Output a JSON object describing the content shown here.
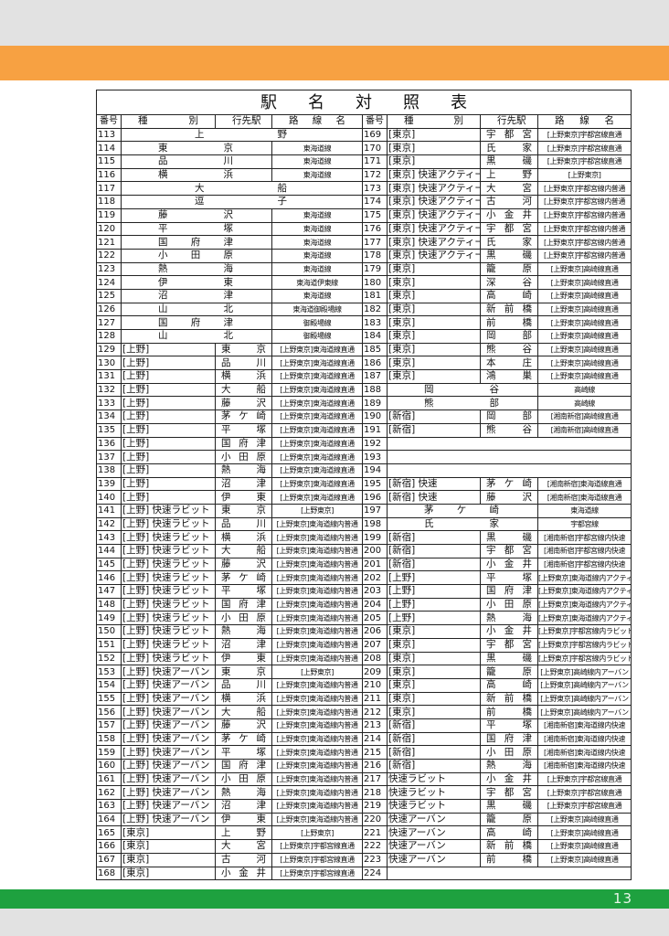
{
  "header": {
    "title": "駅名対照表",
    "page": "13"
  },
  "table": {
    "columns": [
      "番号",
      "種別",
      "行先駅",
      "路線名",
      "番号",
      "種別",
      "行先駅",
      "路線名"
    ],
    "left": [
      [
        "113",
        "上野"
      ],
      [
        "114",
        "東京",
        "東海道線"
      ],
      [
        "115",
        "品川",
        "東海道線"
      ],
      [
        "116",
        "横浜",
        "東海道線"
      ],
      [
        "117",
        "大船"
      ],
      [
        "118",
        "逗子"
      ],
      [
        "119",
        "藤沢",
        "東海道線"
      ],
      [
        "120",
        "平塚",
        "東海道線"
      ],
      [
        "121",
        "国府津",
        "東海道線"
      ],
      [
        "122",
        "小田原",
        "東海道線"
      ],
      [
        "123",
        "熱海",
        "東海道線"
      ],
      [
        "124",
        "伊東",
        "東海道伊東線"
      ],
      [
        "125",
        "沼津",
        "東海道線"
      ],
      [
        "126",
        "山北",
        "東海道御殿場線"
      ],
      [
        "127",
        "国府津",
        "御殿場線"
      ],
      [
        "128",
        "山北",
        "御殿場線"
      ],
      [
        "129",
        "[上野]",
        "東京",
        "[上野東京]東海道線直通"
      ],
      [
        "130",
        "[上野]",
        "品川",
        "[上野東京]東海道線直通"
      ],
      [
        "131",
        "[上野]",
        "横浜",
        "[上野東京]東海道線直通"
      ],
      [
        "132",
        "[上野]",
        "大船",
        "[上野東京]東海道線直通"
      ],
      [
        "133",
        "[上野]",
        "藤沢",
        "[上野東京]東海道線直通"
      ],
      [
        "134",
        "[上野]",
        "茅ケ崎",
        "[上野東京]東海道線直通"
      ],
      [
        "135",
        "[上野]",
        "平塚",
        "[上野東京]東海道線直通"
      ],
      [
        "136",
        "[上野]",
        "国府津",
        "[上野東京]東海道線直通"
      ],
      [
        "137",
        "[上野]",
        "小田原",
        "[上野東京]東海道線直通"
      ],
      [
        "138",
        "[上野]",
        "熱海",
        "[上野東京]東海道線直通"
      ],
      [
        "139",
        "[上野]",
        "沼津",
        "[上野東京]東海道線直通"
      ],
      [
        "140",
        "[上野]",
        "伊東",
        "[上野東京]東海道線直通"
      ],
      [
        "141",
        "[上野] 快速ラビット",
        "東京",
        "[上野東京]"
      ],
      [
        "142",
        "[上野] 快速ラビット",
        "品川",
        "[上野東京]東海道線内普通"
      ],
      [
        "143",
        "[上野] 快速ラビット",
        "横浜",
        "[上野東京]東海道線内普通"
      ],
      [
        "144",
        "[上野] 快速ラビット",
        "大船",
        "[上野東京]東海道線内普通"
      ],
      [
        "145",
        "[上野] 快速ラビット",
        "藤沢",
        "[上野東京]東海道線内普通"
      ],
      [
        "146",
        "[上野] 快速ラビット",
        "茅ケ崎",
        "[上野東京]東海道線内普通"
      ],
      [
        "147",
        "[上野] 快速ラビット",
        "平塚",
        "[上野東京]東海道線内普通"
      ],
      [
        "148",
        "[上野] 快速ラビット",
        "国府津",
        "[上野東京]東海道線内普通"
      ],
      [
        "149",
        "[上野] 快速ラビット",
        "小田原",
        "[上野東京]東海道線内普通"
      ],
      [
        "150",
        "[上野] 快速ラビット",
        "熱海",
        "[上野東京]東海道線内普通"
      ],
      [
        "151",
        "[上野] 快速ラビット",
        "沼津",
        "[上野東京]東海道線内普通"
      ],
      [
        "152",
        "[上野] 快速ラビット",
        "伊東",
        "[上野東京]東海道線内普通"
      ],
      [
        "153",
        "[上野] 快速アーバン",
        "東京",
        "[上野東京]"
      ],
      [
        "154",
        "[上野] 快速アーバン",
        "品川",
        "[上野東京]東海道線内普通"
      ],
      [
        "155",
        "[上野] 快速アーバン",
        "横浜",
        "[上野東京]東海道線内普通"
      ],
      [
        "156",
        "[上野] 快速アーバン",
        "大船",
        "[上野東京]東海道線内普通"
      ],
      [
        "157",
        "[上野] 快速アーバン",
        "藤沢",
        "[上野東京]東海道線内普通"
      ],
      [
        "158",
        "[上野] 快速アーバン",
        "茅ケ崎",
        "[上野東京]東海道線内普通"
      ],
      [
        "159",
        "[上野] 快速アーバン",
        "平塚",
        "[上野東京]東海道線内普通"
      ],
      [
        "160",
        "[上野] 快速アーバン",
        "国府津",
        "[上野東京]東海道線内普通"
      ],
      [
        "161",
        "[上野] 快速アーバン",
        "小田原",
        "[上野東京]東海道線内普通"
      ],
      [
        "162",
        "[上野] 快速アーバン",
        "熱海",
        "[上野東京]東海道線内普通"
      ],
      [
        "163",
        "[上野] 快速アーバン",
        "沼津",
        "[上野東京]東海道線内普通"
      ],
      [
        "164",
        "[上野] 快速アーバン",
        "伊東",
        "[上野東京]東海道線内普通"
      ],
      [
        "165",
        "[東京]",
        "上野",
        "[上野東京]"
      ],
      [
        "166",
        "[東京]",
        "大宮",
        "[上野東京]宇都宮線直通"
      ],
      [
        "167",
        "[東京]",
        "古河",
        "[上野東京]宇都宮線直通"
      ],
      [
        "168",
        "[東京]",
        "小金井",
        "[上野東京]宇都宮線直通"
      ]
    ],
    "right": [
      [
        "169",
        "[東京]",
        "宇都宮",
        "[上野東京]宇都宮線直通"
      ],
      [
        "170",
        "[東京]",
        "氏家",
        "[上野東京]宇都宮線直通"
      ],
      [
        "171",
        "[東京]",
        "黒磯",
        "[上野東京]宇都宮線直通"
      ],
      [
        "172",
        "[東京] 快速アクティー",
        "上野",
        "[上野東京]"
      ],
      [
        "173",
        "[東京] 快速アクティー",
        "大宮",
        "[上野東京]宇都宮線内普通"
      ],
      [
        "174",
        "[東京] 快速アクティー",
        "古河",
        "[上野東京]宇都宮線内普通"
      ],
      [
        "175",
        "[東京] 快速アクティー",
        "小金井",
        "[上野東京]宇都宮線内普通"
      ],
      [
        "176",
        "[東京] 快速アクティー",
        "宇都宮",
        "[上野東京]宇都宮線内普通"
      ],
      [
        "177",
        "[東京] 快速アクティー",
        "氏家",
        "[上野東京]宇都宮線内普通"
      ],
      [
        "178",
        "[東京] 快速アクティー",
        "黒磯",
        "[上野東京]宇都宮線内普通"
      ],
      [
        "179",
        "[東京]",
        "籠原",
        "[上野東京]高崎線直通"
      ],
      [
        "180",
        "[東京]",
        "深谷",
        "[上野東京]高崎線直通"
      ],
      [
        "181",
        "[東京]",
        "高崎",
        "[上野東京]高崎線直通"
      ],
      [
        "182",
        "[東京]",
        "新前橋",
        "[上野東京]高崎線直通"
      ],
      [
        "183",
        "[東京]",
        "前橋",
        "[上野東京]高崎線直通"
      ],
      [
        "184",
        "[東京]",
        "岡部",
        "[上野東京]高崎線直通"
      ],
      [
        "185",
        "[東京]",
        "熊谷",
        "[上野東京]高崎線直通"
      ],
      [
        "186",
        "[東京]",
        "本庄",
        "[上野東京]高崎線直通"
      ],
      [
        "187",
        "[東京]",
        "鴻巣",
        "[上野東京]高崎線直通"
      ],
      [
        "188",
        "岡谷",
        "高崎線"
      ],
      [
        "189",
        "熊部",
        "高崎線"
      ],
      [
        "190",
        "[新宿]",
        "岡部",
        "[湘南新宿]高崎線直通"
      ],
      [
        "191",
        "[新宿]",
        "熊谷",
        "[湘南新宿]高崎線直通"
      ],
      [
        "192"
      ],
      [
        "193"
      ],
      [
        "194"
      ],
      [
        "195",
        "[新宿] 快速",
        "茅ケ崎",
        "[湘南新宿]東海道線直通"
      ],
      [
        "196",
        "[新宿] 快速",
        "藤沢",
        "[湘南新宿]東海道線直通"
      ],
      [
        "197",
        "茅ケ崎",
        "東海道線"
      ],
      [
        "198",
        "氏家",
        "宇都宮線"
      ],
      [
        "199",
        "[新宿]",
        "黒磯",
        "[湘南新宿]宇都宮線内快速"
      ],
      [
        "200",
        "[新宿]",
        "宇都宮",
        "[湘南新宿]宇都宮線内快速"
      ],
      [
        "201",
        "[新宿]",
        "小金井",
        "[湘南新宿]宇都宮線内快速"
      ],
      [
        "202",
        "[上野]",
        "平塚",
        "[上野東京]東海道線内アクティー"
      ],
      [
        "203",
        "[上野]",
        "国府津",
        "[上野東京]東海道線内アクティー"
      ],
      [
        "204",
        "[上野]",
        "小田原",
        "[上野東京]東海道線内アクティー"
      ],
      [
        "205",
        "[上野]",
        "熱海",
        "[上野東京]東海道線内アクティー"
      ],
      [
        "206",
        "[東京]",
        "小金井",
        "[上野東京]宇都宮線内ラビット"
      ],
      [
        "207",
        "[東京]",
        "宇都宮",
        "[上野東京]宇都宮線内ラビット"
      ],
      [
        "208",
        "[東京]",
        "黒磯",
        "[上野東京]宇都宮線内ラビット"
      ],
      [
        "209",
        "[東京]",
        "籠原",
        "[上野東京]高崎線内アーバン"
      ],
      [
        "210",
        "[東京]",
        "高崎",
        "[上野東京]高崎線内アーバン"
      ],
      [
        "211",
        "[東京]",
        "新前橋",
        "[上野東京]高崎線内アーバン"
      ],
      [
        "212",
        "[東京]",
        "前橋",
        "[上野東京]高崎線内アーバン"
      ],
      [
        "213",
        "[新宿]",
        "平塚",
        "[湘南新宿]東海道線内快速"
      ],
      [
        "214",
        "[新宿]",
        "国府津",
        "[湘南新宿]東海道線内快速"
      ],
      [
        "215",
        "[新宿]",
        "小田原",
        "[湘南新宿]東海道線内快速"
      ],
      [
        "216",
        "[新宿]",
        "熱海",
        "[湘南新宿]東海道線内快速"
      ],
      [
        "217",
        "快速ラビット",
        "小金井",
        "[上野東京]宇都宮線直通"
      ],
      [
        "218",
        "快速ラビット",
        "宇都宮",
        "[上野東京]宇都宮線直通"
      ],
      [
        "219",
        "快速ラビット",
        "黒磯",
        "[上野東京]宇都宮線直通"
      ],
      [
        "220",
        "快速アーバン",
        "籠原",
        "[上野東京]高崎線直通"
      ],
      [
        "221",
        "快速アーバン",
        "高崎",
        "[上野東京]高崎線直通"
      ],
      [
        "222",
        "快速アーバン",
        "新前橋",
        "[上野東京]高崎線直通"
      ],
      [
        "223",
        "快速アーバン",
        "前橋",
        "[上野東京]高崎線直通"
      ],
      [
        "224"
      ]
    ]
  }
}
